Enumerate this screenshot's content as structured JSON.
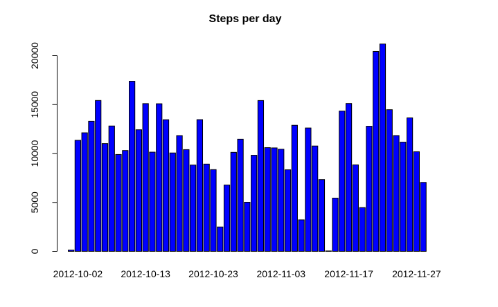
{
  "chart_data": {
    "type": "bar",
    "title": "Steps per day",
    "xlabel": "",
    "ylabel": "",
    "ylim": [
      0,
      21194
    ],
    "y_ticks": [
      0,
      5000,
      10000,
      15000,
      20000
    ],
    "x_tick_labels": [
      "2012-10-02",
      "2012-10-13",
      "2012-10-23",
      "2012-11-03",
      "2012-11-17",
      "2012-11-27"
    ],
    "x_tick_label_bar_index": [
      1,
      11,
      21,
      31,
      41,
      51
    ],
    "bar_color": "#0000ff",
    "border_color": "#000000",
    "grid": false,
    "values": [
      126,
      11352,
      12116,
      13294,
      15420,
      11015,
      12811,
      9900,
      10304,
      17382,
      12426,
      15098,
      10139,
      15084,
      13452,
      10056,
      11829,
      10395,
      8821,
      13460,
      8918,
      8355,
      2492,
      6778,
      10119,
      11458,
      5018,
      9819,
      15414,
      10600,
      10571,
      10439,
      8334,
      12883,
      3219,
      12608,
      10765,
      7336,
      41,
      5441,
      14339,
      15110,
      8841,
      4472,
      12787,
      20427,
      21194,
      14478,
      11834,
      11162,
      13646,
      10183,
      7047
    ]
  }
}
